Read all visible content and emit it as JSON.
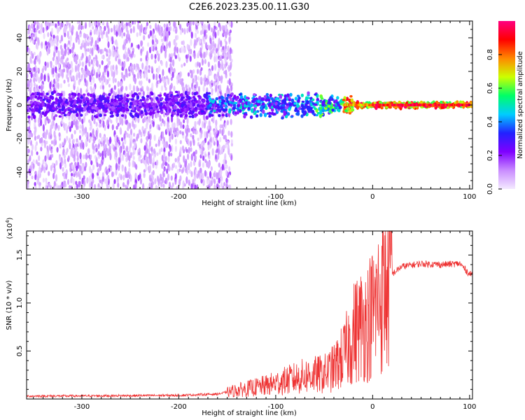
{
  "figure_title": "C2E6.2023.235.00.11.G30",
  "chart_data": [
    {
      "type": "heatmap",
      "xlabel": "Height of straight line (km)",
      "ylabel": "Frequency (Hz)",
      "xlim": [
        -357,
        103
      ],
      "ylim": [
        -50,
        50
      ],
      "xticks": [
        -300,
        -200,
        -100,
        0,
        100
      ],
      "xtick_labels": [
        "-300",
        "-200",
        "-100",
        "0",
        "100"
      ],
      "yticks": [
        -40,
        -20,
        0,
        20,
        40
      ],
      "ytick_labels": [
        "-40",
        "-20",
        "0",
        "20",
        "40"
      ],
      "colorbar": {
        "label": "Normalized spectral amplitude",
        "range": [
          0.0,
          1.0
        ],
        "ticks": [
          0.0,
          0.2,
          0.4,
          0.6,
          0.8
        ],
        "tick_labels": [
          "0.0",
          "0.2",
          "0.4",
          "0.6",
          "0.8"
        ],
        "colors": [
          "#f4eaff",
          "#c98cff",
          "#7f00ff",
          "#2222ff",
          "#00ccff",
          "#00ff66",
          "#ccff00",
          "#ff8800",
          "#ff0000",
          "#ff0080"
        ]
      },
      "features": {
        "noise_region_x": [
          -357,
          -165
        ],
        "band_center_hz": 0,
        "strong_band_start_km": -30,
        "strong_band_end_km": 100
      }
    },
    {
      "type": "line",
      "xlabel": "Height of straight line (km)",
      "ylabel": "SNR (10 * v/v)",
      "y_scale_label": "(x10",
      "y_scale_exponent": "4",
      "y_scale_suffix": ")",
      "xlim": [
        -357,
        103
      ],
      "ylim": [
        0,
        17500
      ],
      "xticks": [
        -300,
        -200,
        -100,
        0,
        100
      ],
      "xtick_labels": [
        "-300",
        "-200",
        "-100",
        "0",
        "100"
      ],
      "yticks": [
        5000,
        10000,
        15000
      ],
      "ytick_labels": [
        "0.5",
        "1.0",
        "1.5"
      ],
      "color": "#ee3333",
      "envelope": {
        "x": [
          -357,
          -300,
          -200,
          -160,
          -140,
          -110,
          -90,
          -70,
          -50,
          -40,
          -30,
          -25,
          -20,
          -15,
          -10,
          -5,
          0,
          5,
          10,
          15,
          20,
          30,
          50,
          70,
          90,
          100
        ],
        "y": [
          300,
          320,
          380,
          520,
          900,
          1400,
          1900,
          2400,
          2600,
          3200,
          4500,
          5500,
          6800,
          7500,
          7800,
          8200,
          9000,
          10000,
          11000,
          11800,
          13000,
          13800,
          14100,
          14000,
          14100,
          13000
        ]
      }
    }
  ]
}
